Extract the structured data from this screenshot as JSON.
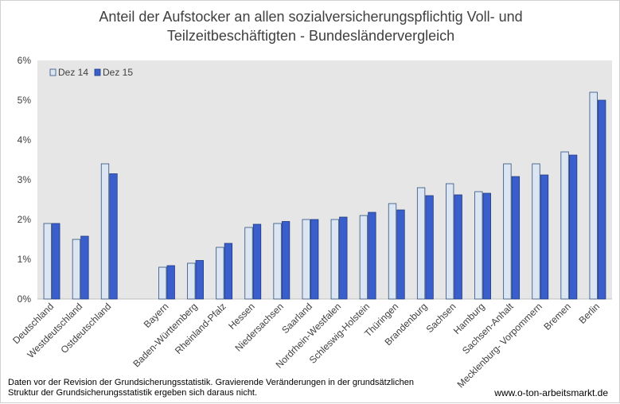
{
  "chart_data": {
    "type": "bar",
    "title": [
      "Anteil der Aufstocker an allen sozialversicherungspflichtig Voll- und",
      "Teilzeitbeschäftigten - Bundesländervergleich"
    ],
    "categories": [
      "Deutschland",
      "Westdeutschland",
      "Ostdeutschland",
      "",
      "Bayern",
      "Baden-Württemberg",
      "Rheinland-Pfalz",
      "Hessen",
      "Niedersachsen",
      "Saarland",
      "Nordrhein-Westfalen",
      "Schleswig-Holstein",
      "Thüringen",
      "Brandenburg",
      "Sachsen",
      "Hamburg",
      "Sachsen-Anhalt",
      "Mecklenburg- Vorpommern",
      "Bremen",
      "Berlin"
    ],
    "series": [
      {
        "name": "Dez 14",
        "color": "#dce6f2",
        "stroke": "#2f4f7f",
        "values": [
          1.9,
          1.5,
          3.4,
          null,
          0.8,
          0.9,
          1.3,
          1.8,
          1.9,
          2.0,
          2.0,
          2.1,
          2.4,
          2.8,
          2.9,
          2.7,
          3.4,
          3.4,
          3.7,
          5.2
        ]
      },
      {
        "name": "Dez 15",
        "color": "#3a5fcd",
        "stroke": "#1f3a80",
        "values": [
          1.9,
          1.58,
          3.15,
          null,
          0.84,
          0.97,
          1.4,
          1.88,
          1.95,
          2.0,
          2.06,
          2.18,
          2.24,
          2.6,
          2.62,
          2.66,
          3.08,
          3.12,
          3.62,
          5.0
        ]
      }
    ],
    "ylim": [
      0,
      6
    ],
    "yticks": [
      "0%",
      "1%",
      "2%",
      "3%",
      "4%",
      "5%",
      "6%"
    ],
    "grid": false,
    "legend": "top-left"
  },
  "footnote": [
    "Daten vor der Revision der Grundsicherungsstatistik. Gravierende Veränderungen in der grundsätzlichen",
    "Struktur der Grundsicherungsstatistik ergeben sich daraus nicht."
  ],
  "source": "www.o-ton-arbeitsmarkt.de"
}
